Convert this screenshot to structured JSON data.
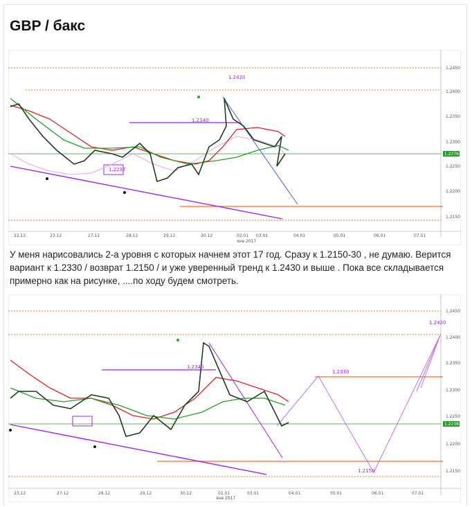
{
  "post": {
    "title": "GBP / бакс",
    "text": "У меня нарисовались 2-а уровня с которых начнем этот 17 год. Сразу к 1.2150-30 , не думаю. Верится вариант к 1.2330 / возврат 1.2150 / и уже уверенный тренд к 1.2430 и выше . Пока все складывается примерно как на рисунке,  ....по ходу будем смотреть."
  },
  "chart_1": {
    "price_labels": [
      "1.2450",
      "1.2400",
      "1.2350",
      "1.2300",
      "1.2250",
      "1.2200",
      "1.2150"
    ],
    "current_price": "1.2276",
    "dates": [
      "22.12",
      "23.12",
      "27.12",
      "28.12",
      "29.12",
      "30.12",
      "02.01",
      "03.01",
      "04.01",
      "05.01",
      "06.01",
      "07.01"
    ],
    "month_label": "янв 2017",
    "annotations": [
      "1.2420",
      "1.2340",
      "1.2237"
    ]
  },
  "chart_2": {
    "price_labels": [
      "1.2450",
      "1.2400",
      "1.2350",
      "1.2300",
      "1.2250",
      "1.2200",
      "1.2150"
    ],
    "current_price": "1.2238",
    "dates": [
      "23.12",
      "27.12",
      "28.12",
      "29.12",
      "30.12",
      "02.01",
      "03.01",
      "04.01",
      "05.01",
      "06.01",
      "07.01"
    ],
    "month_label": "янв 2017",
    "annotations": [
      "1.2420",
      "1.2340",
      "1.2330",
      "1.2150"
    ]
  }
}
